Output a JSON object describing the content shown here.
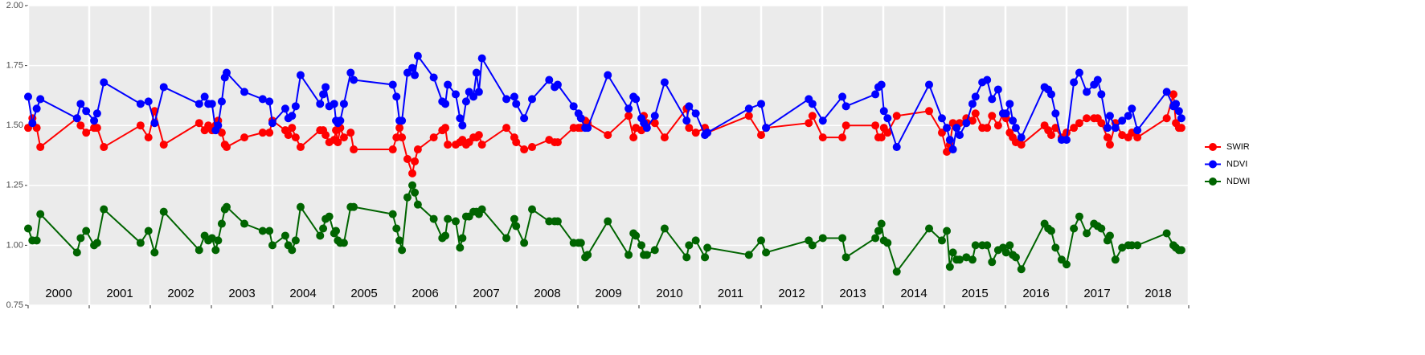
{
  "chart_data": {
    "type": "line",
    "x": [
      2000.0,
      2000.07,
      2000.14,
      2000.2,
      2000.8,
      2000.86,
      2000.95,
      2001.08,
      2001.13,
      2001.24,
      2001.84,
      2001.97,
      2002.07,
      2002.22,
      2002.8,
      2002.89,
      2002.95,
      2003.01,
      2003.07,
      2003.11,
      2003.17,
      2003.22,
      2003.25,
      2003.54,
      2003.84,
      2003.95,
      2004.0,
      2004.21,
      2004.26,
      2004.32,
      2004.38,
      2004.46,
      2004.78,
      2004.83,
      2004.87,
      2004.93,
      2005.01,
      2005.04,
      2005.07,
      2005.11,
      2005.17,
      2005.28,
      2005.33,
      2005.97,
      2006.03,
      2006.08,
      2006.12,
      2006.21,
      2006.29,
      2006.33,
      2006.38,
      2006.64,
      2006.78,
      2006.83,
      2006.87,
      2007.0,
      2007.07,
      2007.11,
      2007.17,
      2007.22,
      2007.29,
      2007.34,
      2007.38,
      2007.43,
      2007.83,
      2007.96,
      2007.99,
      2008.12,
      2008.25,
      2008.53,
      2008.62,
      2008.67,
      2008.93,
      2009.01,
      2009.05,
      2009.12,
      2009.16,
      2009.49,
      2009.83,
      2009.91,
      2009.95,
      2010.04,
      2010.08,
      2010.13,
      2010.26,
      2010.42,
      2010.78,
      2010.82,
      2010.93,
      2011.08,
      2011.12,
      2011.8,
      2012.0,
      2012.08,
      2012.78,
      2012.84,
      2013.01,
      2013.33,
      2013.39,
      2013.87,
      2013.92,
      2013.97,
      2014.01,
      2014.07,
      2014.22,
      2014.75,
      2014.96,
      2015.04,
      2015.09,
      2015.14,
      2015.2,
      2015.25,
      2015.36,
      2015.46,
      2015.51,
      2015.62,
      2015.7,
      2015.78,
      2015.88,
      2015.96,
      2016.01,
      2016.07,
      2016.12,
      2016.17,
      2016.26,
      2016.64,
      2016.7,
      2016.75,
      2016.82,
      2016.92,
      2017.0,
      2017.12,
      2017.21,
      2017.33,
      2017.45,
      2017.51,
      2017.57,
      2017.67,
      2017.71,
      2017.8,
      2017.91,
      2018.01,
      2018.07,
      2018.16,
      2018.64,
      2018.75,
      2018.79,
      2018.84,
      2018.88
    ],
    "series": [
      {
        "name": "SWIR",
        "color": "#ff0000",
        "values": [
          1.49,
          1.53,
          1.49,
          1.41,
          1.53,
          1.5,
          1.47,
          1.49,
          1.49,
          1.41,
          1.5,
          1.45,
          1.56,
          1.42,
          1.51,
          1.48,
          1.5,
          1.48,
          1.5,
          1.52,
          1.47,
          1.42,
          1.41,
          1.45,
          1.47,
          1.47,
          1.52,
          1.48,
          1.46,
          1.49,
          1.45,
          1.41,
          1.48,
          1.48,
          1.46,
          1.43,
          1.44,
          1.48,
          1.43,
          1.49,
          1.45,
          1.47,
          1.4,
          1.4,
          1.45,
          1.49,
          1.45,
          1.36,
          1.3,
          1.35,
          1.4,
          1.45,
          1.48,
          1.49,
          1.42,
          1.42,
          1.43,
          1.44,
          1.42,
          1.43,
          1.45,
          1.45,
          1.46,
          1.42,
          1.49,
          1.45,
          1.43,
          1.4,
          1.41,
          1.44,
          1.43,
          1.43,
          1.49,
          1.49,
          1.49,
          1.52,
          1.51,
          1.46,
          1.54,
          1.45,
          1.49,
          1.48,
          1.54,
          1.51,
          1.51,
          1.45,
          1.57,
          1.49,
          1.47,
          1.49,
          1.47,
          1.54,
          1.46,
          1.49,
          1.51,
          1.54,
          1.45,
          1.45,
          1.5,
          1.5,
          1.45,
          1.45,
          1.49,
          1.47,
          1.54,
          1.56,
          1.47,
          1.39,
          1.42,
          1.51,
          1.5,
          1.51,
          1.53,
          1.52,
          1.55,
          1.49,
          1.49,
          1.54,
          1.5,
          1.55,
          1.53,
          1.47,
          1.45,
          1.43,
          1.42,
          1.5,
          1.48,
          1.46,
          1.49,
          1.45,
          1.47,
          1.49,
          1.51,
          1.53,
          1.53,
          1.53,
          1.51,
          1.45,
          1.42,
          1.51,
          1.46,
          1.45,
          1.47,
          1.45,
          1.53,
          1.63,
          1.51,
          1.49,
          1.49
        ]
      },
      {
        "name": "NDVI",
        "color": "#0000ff",
        "values": [
          1.62,
          1.51,
          1.57,
          1.61,
          1.53,
          1.59,
          1.56,
          1.52,
          1.55,
          1.68,
          1.59,
          1.6,
          1.51,
          1.66,
          1.59,
          1.62,
          1.59,
          1.59,
          1.48,
          1.5,
          1.6,
          1.7,
          1.72,
          1.64,
          1.61,
          1.6,
          1.51,
          1.57,
          1.53,
          1.54,
          1.58,
          1.71,
          1.59,
          1.63,
          1.66,
          1.58,
          1.59,
          1.52,
          1.51,
          1.52,
          1.59,
          1.72,
          1.69,
          1.67,
          1.62,
          1.52,
          1.52,
          1.72,
          1.74,
          1.71,
          1.79,
          1.7,
          1.6,
          1.59,
          1.67,
          1.63,
          1.53,
          1.5,
          1.6,
          1.64,
          1.62,
          1.72,
          1.64,
          1.78,
          1.61,
          1.62,
          1.59,
          1.53,
          1.61,
          1.69,
          1.66,
          1.67,
          1.58,
          1.55,
          1.53,
          1.49,
          1.49,
          1.71,
          1.57,
          1.62,
          1.61,
          1.53,
          1.51,
          1.49,
          1.54,
          1.68,
          1.52,
          1.58,
          1.55,
          1.46,
          1.47,
          1.57,
          1.59,
          1.49,
          1.61,
          1.59,
          1.52,
          1.62,
          1.58,
          1.63,
          1.66,
          1.67,
          1.56,
          1.53,
          1.41,
          1.67,
          1.53,
          1.49,
          1.44,
          1.4,
          1.49,
          1.46,
          1.51,
          1.59,
          1.62,
          1.68,
          1.69,
          1.61,
          1.65,
          1.55,
          1.55,
          1.59,
          1.52,
          1.49,
          1.45,
          1.66,
          1.65,
          1.63,
          1.55,
          1.44,
          1.44,
          1.68,
          1.72,
          1.64,
          1.67,
          1.69,
          1.63,
          1.49,
          1.54,
          1.49,
          1.52,
          1.54,
          1.57,
          1.48,
          1.64,
          1.58,
          1.59,
          1.56,
          1.53
        ]
      },
      {
        "name": "NDWI",
        "color": "#006400",
        "values": [
          1.07,
          1.02,
          1.02,
          1.13,
          0.97,
          1.03,
          1.06,
          1.0,
          1.01,
          1.15,
          1.01,
          1.06,
          0.97,
          1.14,
          0.98,
          1.04,
          1.02,
          1.03,
          0.98,
          1.02,
          1.09,
          1.15,
          1.16,
          1.09,
          1.06,
          1.06,
          1.0,
          1.04,
          1.0,
          0.98,
          1.02,
          1.16,
          1.04,
          1.07,
          1.11,
          1.12,
          1.05,
          1.06,
          1.02,
          1.01,
          1.01,
          1.16,
          1.16,
          1.13,
          1.07,
          1.02,
          0.98,
          1.2,
          1.25,
          1.22,
          1.17,
          1.11,
          1.03,
          1.04,
          1.11,
          1.1,
          0.99,
          1.03,
          1.12,
          1.12,
          1.14,
          1.14,
          1.13,
          1.15,
          1.03,
          1.11,
          1.08,
          1.01,
          1.15,
          1.1,
          1.1,
          1.1,
          1.01,
          1.01,
          1.01,
          0.95,
          0.96,
          1.1,
          0.96,
          1.05,
          1.04,
          1.0,
          0.96,
          0.96,
          0.98,
          1.07,
          0.95,
          1.0,
          1.02,
          0.95,
          0.99,
          0.96,
          1.02,
          0.97,
          1.02,
          1.0,
          1.03,
          1.03,
          0.95,
          1.03,
          1.06,
          1.09,
          1.02,
          1.01,
          0.89,
          1.07,
          1.02,
          1.06,
          0.91,
          0.97,
          0.94,
          0.94,
          0.95,
          0.94,
          1.0,
          1.0,
          1.0,
          0.93,
          0.98,
          0.99,
          0.97,
          1.0,
          0.96,
          0.95,
          0.9,
          1.09,
          1.07,
          1.06,
          0.99,
          0.94,
          0.92,
          1.07,
          1.12,
          1.05,
          1.09,
          1.08,
          1.07,
          1.02,
          1.04,
          0.94,
          0.99,
          1.0,
          1.0,
          1.0,
          1.05,
          1.0,
          0.99,
          0.98,
          0.98
        ]
      }
    ],
    "xlim": [
      2000,
      2019
    ],
    "xticks": [
      2000,
      2001,
      2002,
      2003,
      2004,
      2005,
      2006,
      2007,
      2008,
      2009,
      2010,
      2011,
      2012,
      2013,
      2014,
      2015,
      2016,
      2017,
      2018,
      2019
    ],
    "ylim": [
      0.75,
      2
    ],
    "yticks": [
      0.75,
      {
        "value": 1,
        "label": "1.00"
      },
      1.25,
      {
        "value": 1.5,
        "label": "1.50"
      },
      1.75,
      {
        "value": 2,
        "label": "2.00"
      }
    ],
    "year_labels": [
      "2000",
      "2001",
      "2002",
      "2003",
      "2004",
      "2005",
      "2006",
      "2007",
      "2008",
      "2009",
      "2010",
      "2011",
      "2012",
      "2013",
      "2014",
      "2015",
      "2016",
      "2017",
      "2018"
    ],
    "grid": true,
    "legend": "right"
  }
}
